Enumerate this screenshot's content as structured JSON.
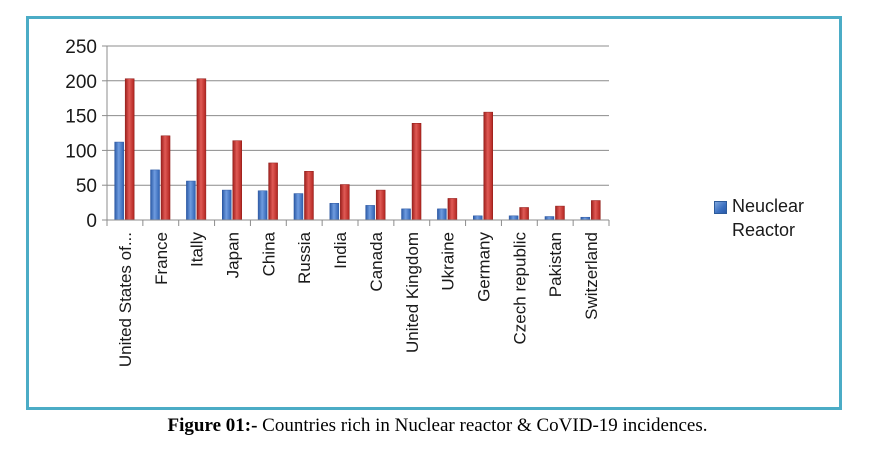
{
  "chart_data": {
    "type": "bar",
    "categories": [
      "United States of...",
      "France",
      "Itally",
      "Japan",
      "China",
      "Russia",
      "India",
      "Canada",
      "United Kingdom",
      "Ukraine",
      "Germany",
      "Czech republic",
      "Pakistan",
      "Switzerland"
    ],
    "series": [
      {
        "name": "Neuclear Reactor",
        "color": "#3a6fc0",
        "values": [
          112,
          72,
          56,
          43,
          42,
          38,
          24,
          21,
          16,
          16,
          6,
          6,
          5,
          4
        ]
      },
      {
        "name": "",
        "color": "#c0302b",
        "values": [
          203,
          121,
          203,
          114,
          82,
          70,
          51,
          43,
          139,
          31,
          155,
          18,
          20,
          28
        ]
      }
    ],
    "yticks": [
      0,
      50,
      100,
      150,
      200,
      250
    ],
    "ylim": [
      0,
      250
    ],
    "grid": true,
    "legend": "right"
  },
  "legend": {
    "label": "Neuclear Reactor"
  },
  "caption": {
    "bold": "Figure 01:-",
    "text": " Countries rich in Nuclear reactor & CoVID-19 incidences."
  }
}
